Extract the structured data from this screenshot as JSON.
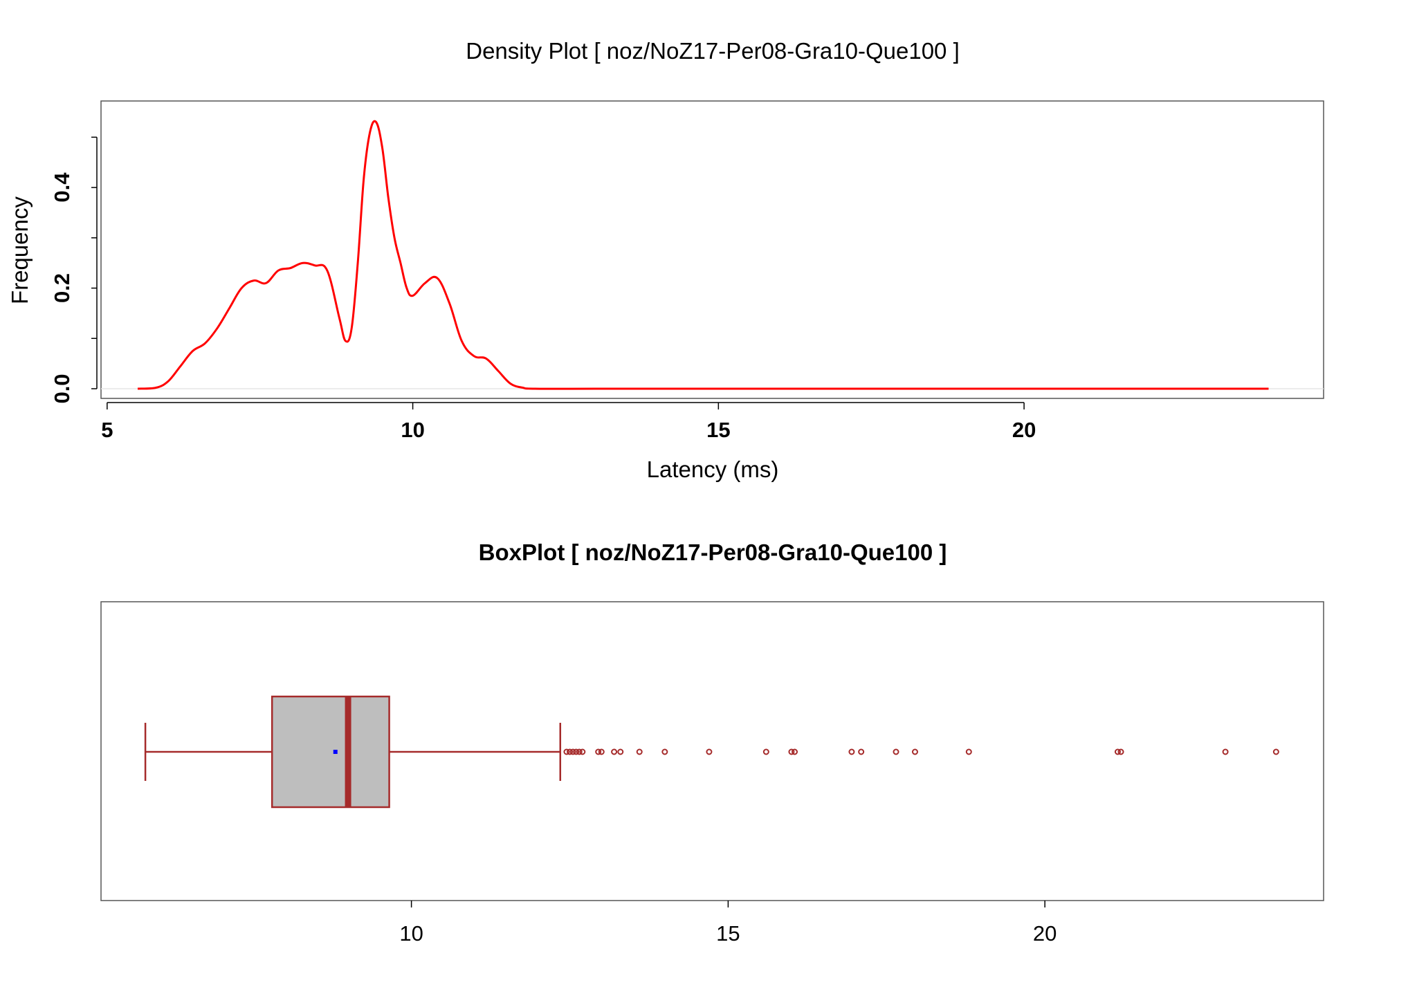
{
  "colors": {
    "density_line": "#ff0000",
    "box_fill": "#bebebe",
    "box_stroke": "#a52a2a",
    "mean_marker": "#0000ff",
    "frame": "#555555",
    "baseline": "#e6e6e6"
  },
  "chart_data": [
    {
      "type": "line",
      "title": "Density Plot [ noz/NoZ17-Per08-Gra10-Que100 ]",
      "xlabel": "Latency (ms)",
      "ylabel": "Frequency",
      "xlim": [
        4.9,
        24.9
      ],
      "ylim": [
        0,
        0.55
      ],
      "x_ticks": [
        "5",
        "10",
        "15",
        "20"
      ],
      "y_ticks": [
        "0.0",
        "0.2",
        "0.4"
      ],
      "grid": false,
      "series": [
        {
          "x": [
            5.5,
            5.8,
            6.0,
            6.2,
            6.4,
            6.6,
            6.8,
            7.0,
            7.2,
            7.4,
            7.6,
            7.8,
            8.0,
            8.2,
            8.4,
            8.6,
            8.8,
            8.9,
            9.0,
            9.1,
            9.2,
            9.3,
            9.4,
            9.5,
            9.6,
            9.7,
            9.8,
            9.9,
            10.0,
            10.2,
            10.4,
            10.6,
            10.8,
            11.0,
            11.2,
            11.4,
            11.6,
            11.8,
            12.0,
            13.0,
            15.0,
            18.0,
            21.0,
            24.0
          ],
          "y": [
            0.0,
            0.002,
            0.015,
            0.045,
            0.075,
            0.09,
            0.12,
            0.16,
            0.2,
            0.215,
            0.21,
            0.235,
            0.24,
            0.25,
            0.245,
            0.235,
            0.14,
            0.095,
            0.12,
            0.25,
            0.42,
            0.51,
            0.53,
            0.48,
            0.38,
            0.3,
            0.25,
            0.2,
            0.185,
            0.21,
            0.22,
            0.17,
            0.095,
            0.065,
            0.06,
            0.035,
            0.01,
            0.002,
            0.0,
            0.0,
            0.0,
            0.0,
            0.0,
            0.0
          ]
        }
      ]
    },
    {
      "type": "box",
      "title": "BoxPlot [ noz/NoZ17-Per08-Gra10-Que100 ]",
      "xlabel": "",
      "ylabel": "",
      "xlim": [
        5.1,
        24.4
      ],
      "x_ticks": [
        "10",
        "15",
        "20"
      ],
      "whisker_low": 5.8,
      "q1": 7.8,
      "median": 9.0,
      "q3": 9.65,
      "whisker_high": 12.35,
      "mean": 8.8,
      "outliers": [
        12.45,
        12.5,
        12.55,
        12.6,
        12.65,
        12.7,
        12.95,
        13.0,
        13.2,
        13.3,
        13.6,
        14.0,
        14.7,
        15.6,
        16.0,
        16.05,
        16.95,
        17.1,
        17.65,
        17.95,
        18.8,
        21.15,
        21.2,
        22.85,
        23.65
      ]
    }
  ]
}
